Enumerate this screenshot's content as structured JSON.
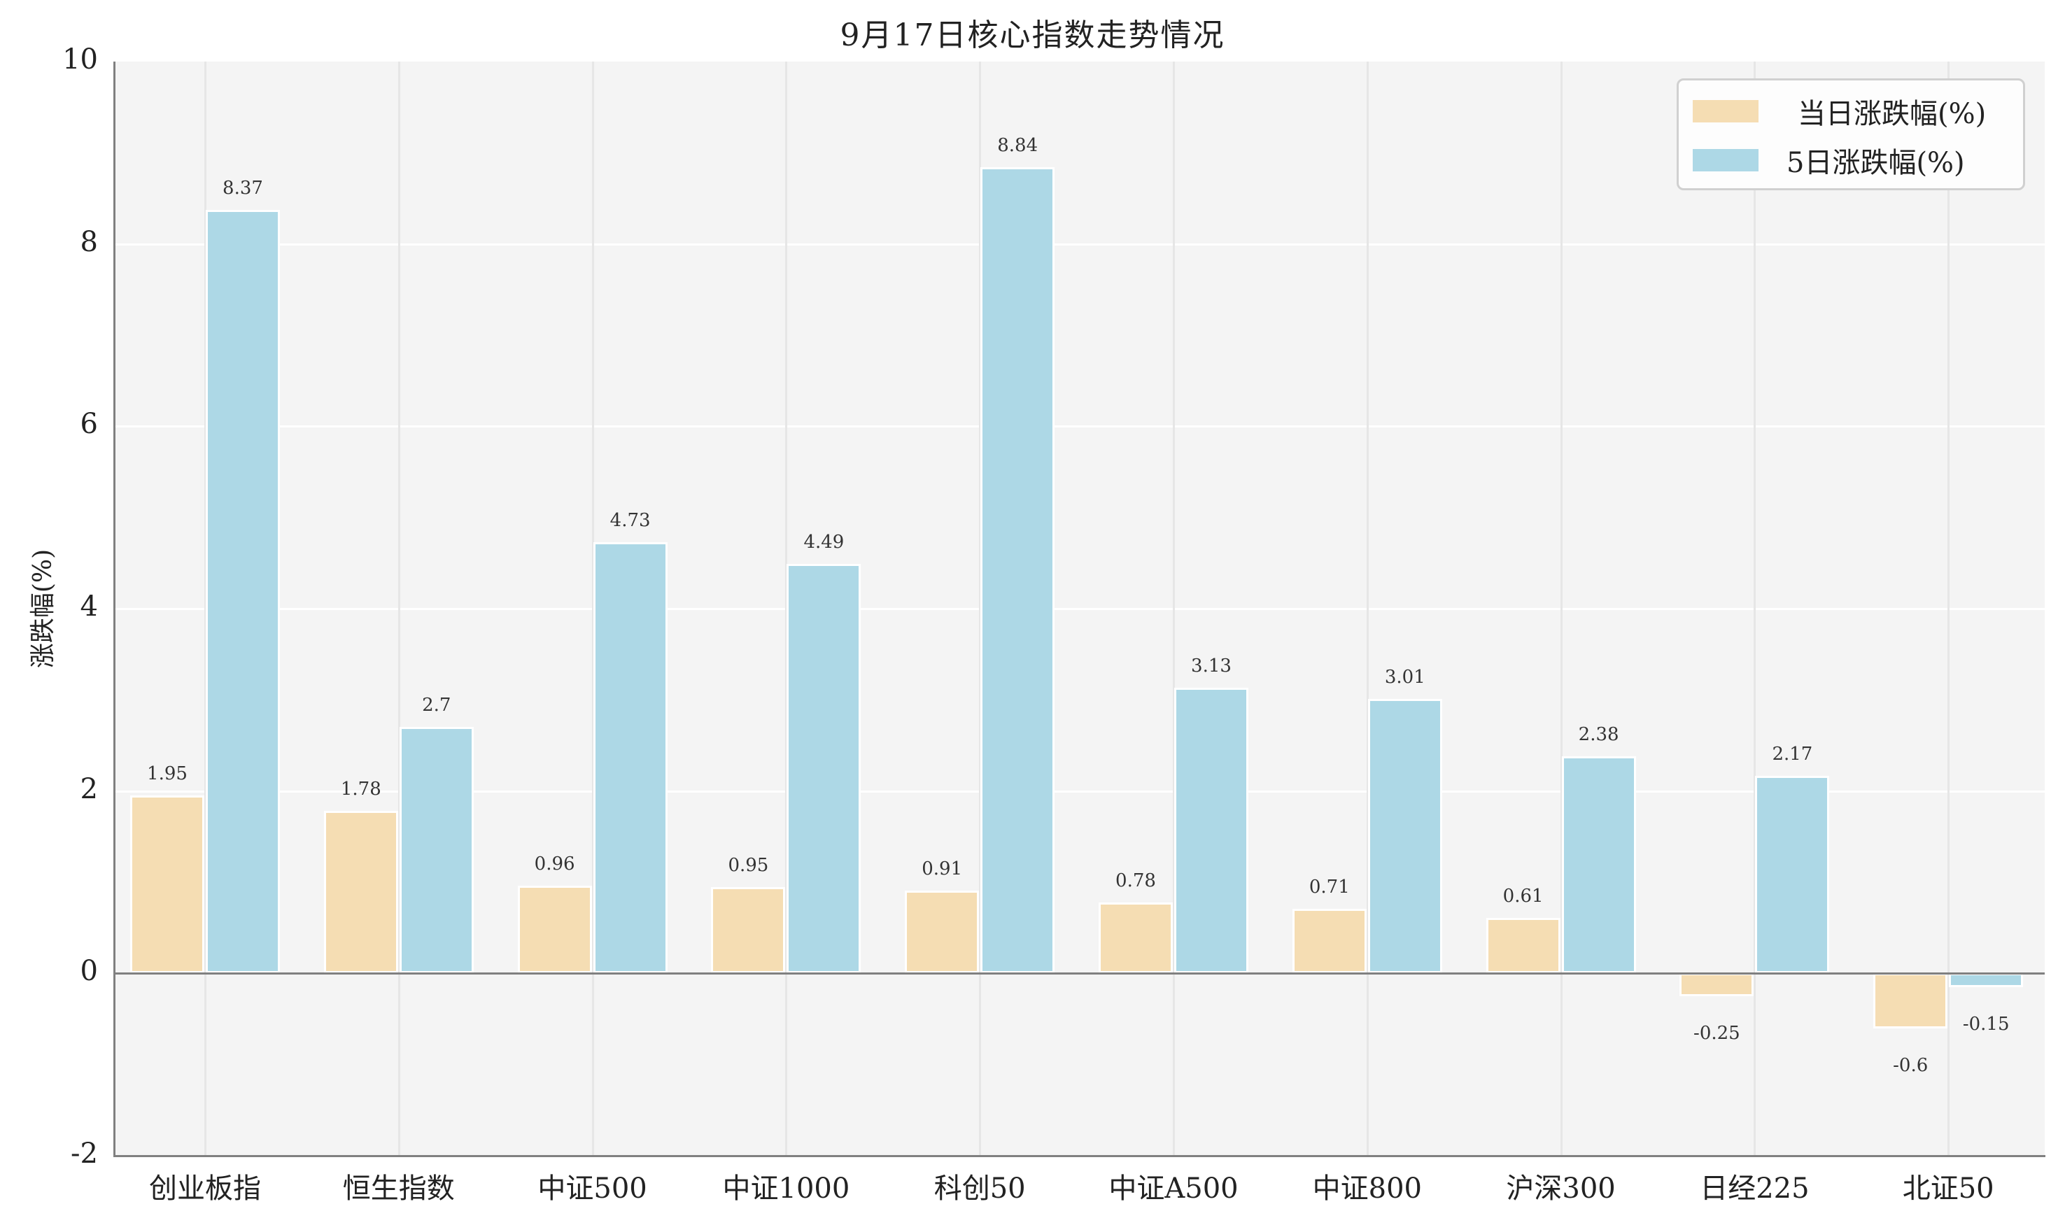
{
  "chart_data": {
    "type": "bar",
    "title": "9月17日核心指数走势情况",
    "xlabel": "",
    "ylabel": "涨跌幅(%)",
    "ylim": [
      -2,
      10
    ],
    "yticks": [
      "-2",
      "0",
      "2",
      "4",
      "6",
      "8",
      "10"
    ],
    "grid": true,
    "legend_position": "upper right",
    "categories": [
      "创业板指",
      "恒生指数",
      "中证500",
      "中证1000",
      "科创50",
      "中证A500",
      "中证800",
      "沪深300",
      "日经225",
      "北证50"
    ],
    "series": [
      {
        "name": "当日涨跌幅(%)",
        "color": "#f5ddb3",
        "values": [
          1.95,
          1.78,
          0.96,
          0.95,
          0.91,
          0.78,
          0.71,
          0.61,
          -0.25,
          -0.6
        ],
        "labels": [
          "1.95",
          "1.78",
          "0.96",
          "0.95",
          "0.91",
          "0.78",
          "0.71",
          "0.61",
          "-0.25",
          "-0.6"
        ]
      },
      {
        "name": "5日涨跌幅(%)",
        "color": "#add8e6",
        "values": [
          8.37,
          2.7,
          4.73,
          4.49,
          8.84,
          3.13,
          3.01,
          2.38,
          2.17,
          -0.15
        ],
        "labels": [
          "8.37",
          "2.7",
          "4.73",
          "4.49",
          "8.84",
          "3.13",
          "3.01",
          "2.38",
          "2.17",
          "-0.15"
        ]
      }
    ]
  },
  "legend": {
    "items": [
      {
        "label": "当日涨跌幅(%)",
        "color": "#f5ddb3"
      },
      {
        "label": "5日涨跌幅(%)",
        "color": "#add8e6"
      }
    ]
  }
}
